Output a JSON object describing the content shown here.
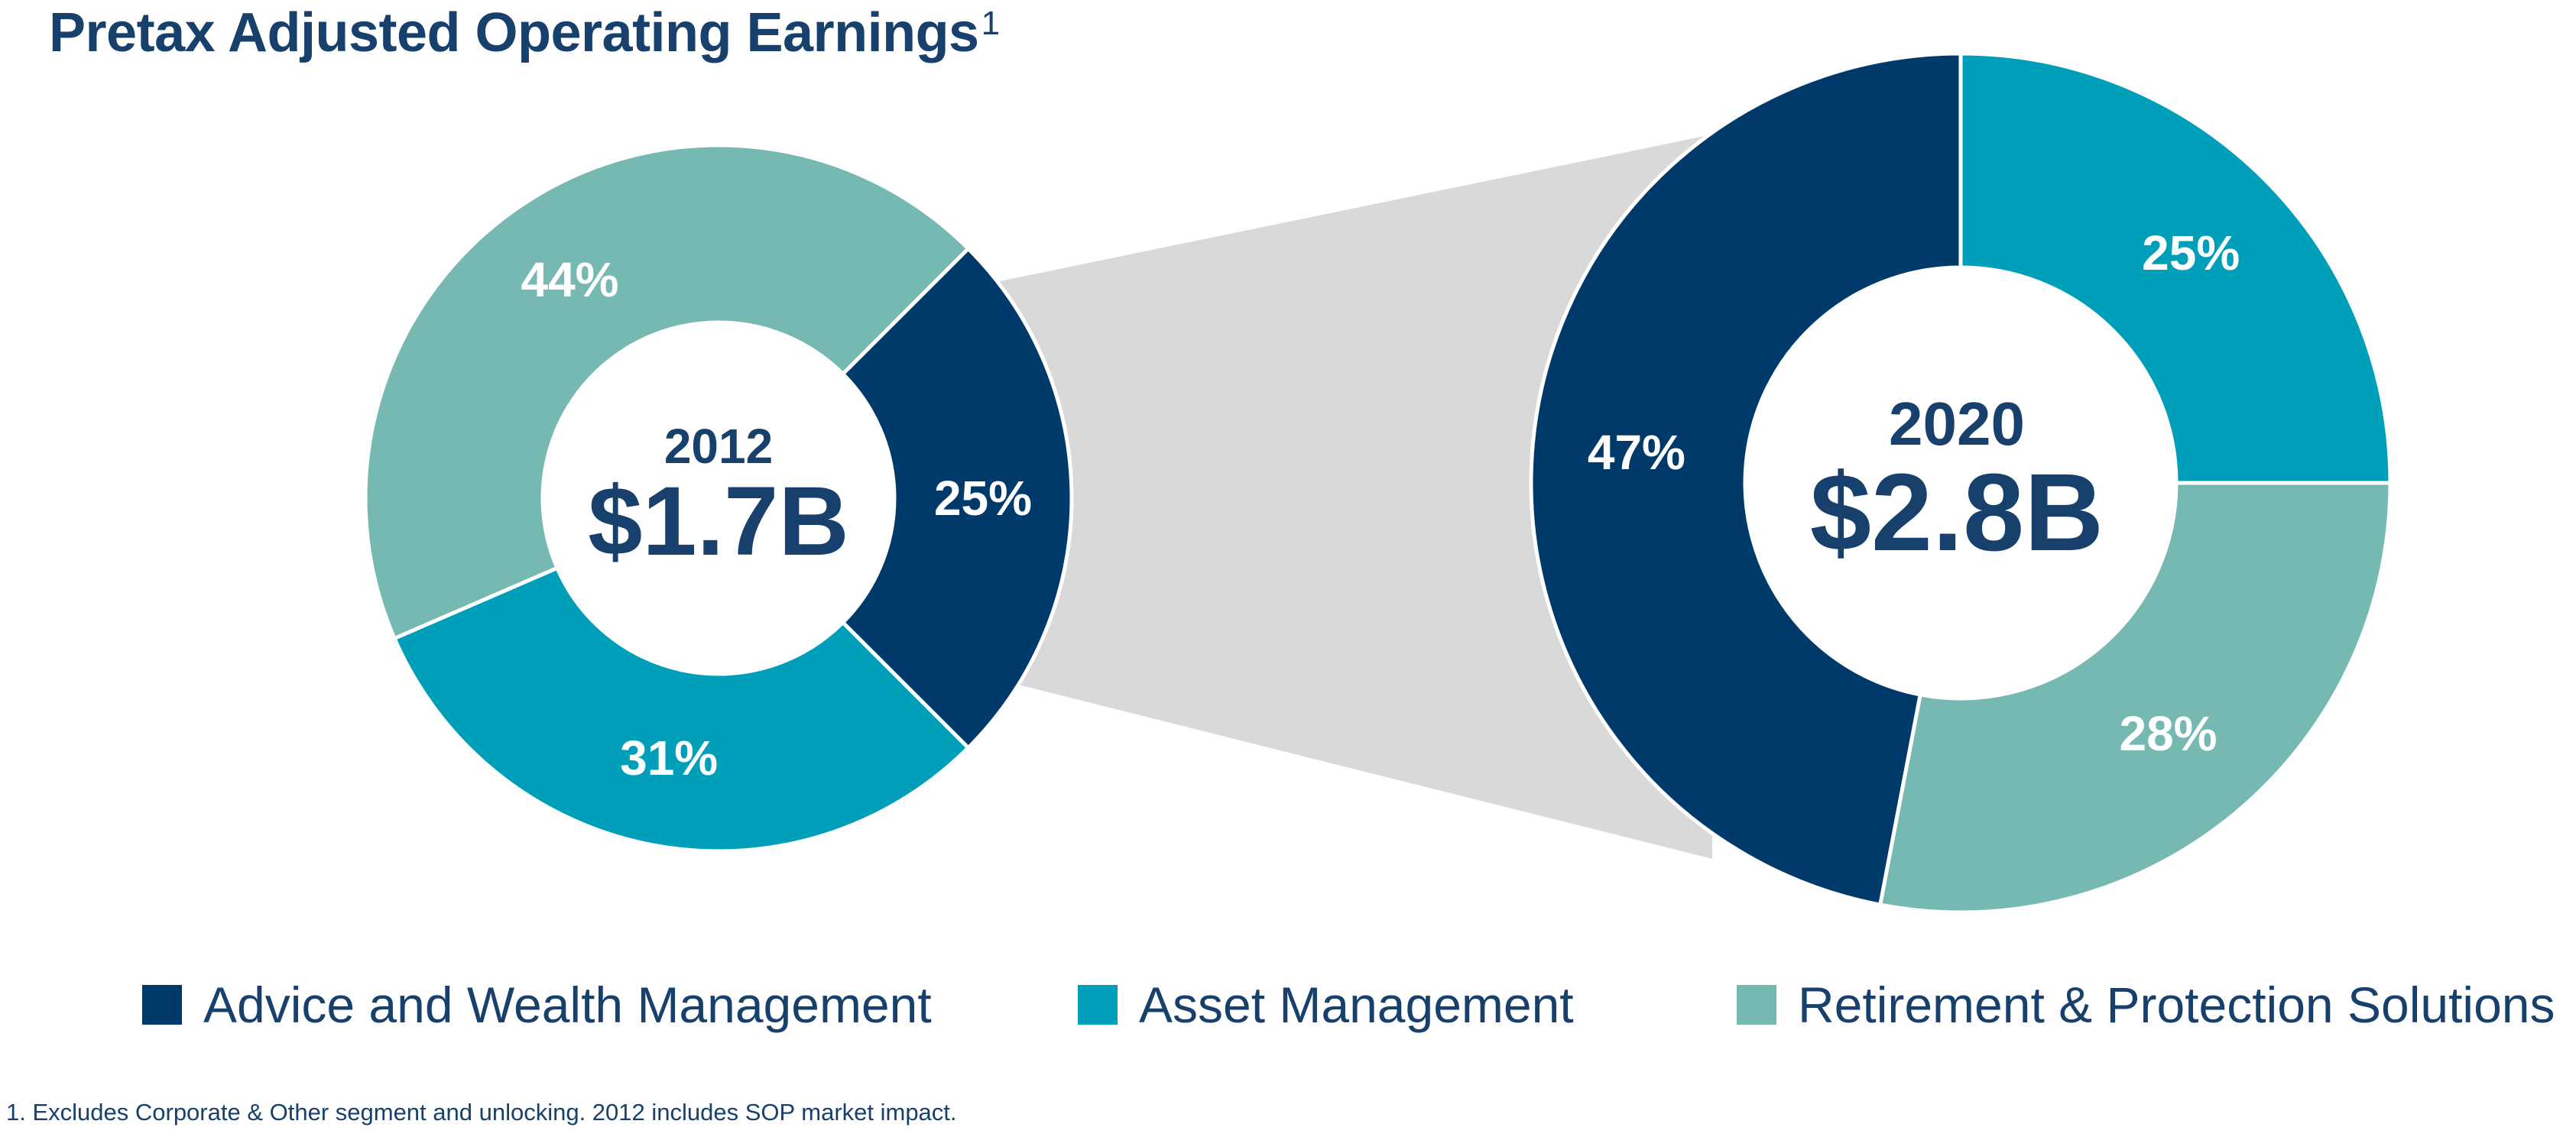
{
  "title": "Pretax Adjusted Operating Earnings",
  "title_footnote_mark": "1",
  "colors": {
    "advice": "#003a6a",
    "asset": "#009fb9",
    "retirement": "#76b9b3",
    "connector": "#d9d9d9",
    "text": "#17406d"
  },
  "chart_data": [
    {
      "type": "pie",
      "title": "2012",
      "total_label": "$1.7B",
      "categories": [
        "Advice and Wealth Management",
        "Asset Management",
        "Retirement & Protection Solutions"
      ],
      "values": [
        25,
        31,
        44
      ],
      "labels": [
        "25%",
        "31%",
        "44%"
      ]
    },
    {
      "type": "pie",
      "title": "2020",
      "total_label": "$2.8B",
      "categories": [
        "Asset Management",
        "Retirement & Protection Solutions",
        "Advice and Wealth Management"
      ],
      "values": [
        25,
        28,
        47
      ],
      "labels": [
        "25%",
        "28%",
        "47%"
      ]
    }
  ],
  "legend": [
    {
      "label": "Advice and Wealth Management",
      "color_key": "advice"
    },
    {
      "label": "Asset Management",
      "color_key": "asset"
    },
    {
      "label": "Retirement & Protection Solutions",
      "color_key": "retirement"
    }
  ],
  "footnote": "1. Excludes Corporate & Other segment and unlocking. 2012 includes SOP market impact."
}
